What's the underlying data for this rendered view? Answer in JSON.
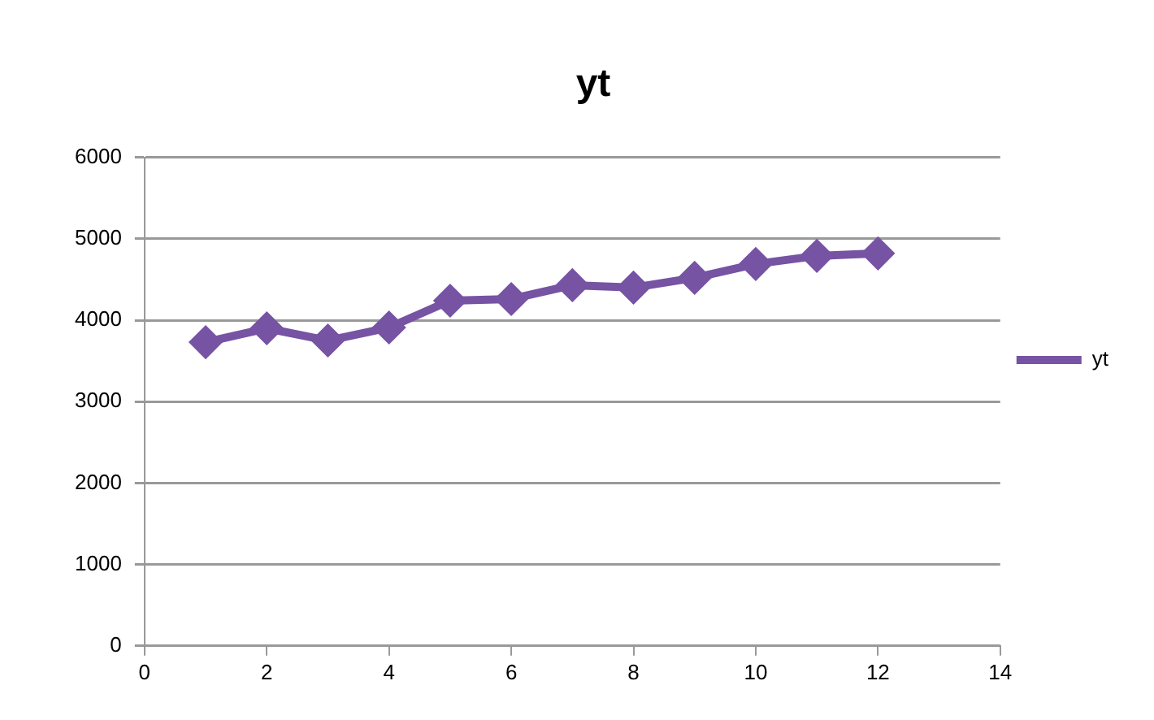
{
  "chart_data": {
    "type": "line",
    "title": "yt",
    "x": [
      1,
      2,
      3,
      4,
      5,
      6,
      7,
      8,
      9,
      10,
      11,
      12
    ],
    "series": [
      {
        "name": "yt",
        "color": "#7653a3",
        "values": [
          3730,
          3900,
          3750,
          3910,
          4240,
          4260,
          4430,
          4400,
          4520,
          4690,
          4790,
          4820
        ]
      }
    ],
    "xlim": [
      0,
      14
    ],
    "xticks": [
      0,
      2,
      4,
      6,
      8,
      10,
      12,
      14
    ],
    "ylim": [
      0,
      6000
    ],
    "yticks": [
      0,
      1000,
      2000,
      3000,
      4000,
      5000,
      6000
    ],
    "grid": "y",
    "legend": "right",
    "marker": "diamond",
    "line_style": "solid"
  }
}
